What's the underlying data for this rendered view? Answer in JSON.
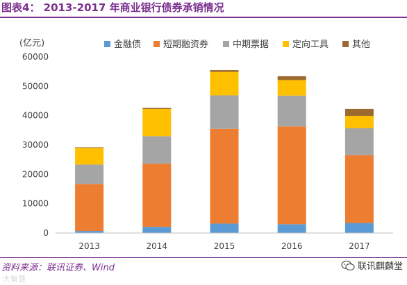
{
  "figure": {
    "title": "图表4： 2013-2017 年商业银行债券承销情况",
    "source": "资料来源：联讯证券、Wind",
    "brand": "联讯麒麟堂",
    "watermark": "大智慧"
  },
  "chart_data": {
    "type": "bar",
    "stacked": true,
    "unit_label": "(亿元)",
    "categories": [
      "2013",
      "2014",
      "2015",
      "2016",
      "2017"
    ],
    "ylim": [
      0,
      60000
    ],
    "yticks": [
      0,
      10000,
      20000,
      30000,
      40000,
      50000,
      60000
    ],
    "grid": false,
    "legend_position": "top",
    "series": [
      {
        "name": "金融债",
        "color": "#5b9bd5",
        "values": [
          700,
          2100,
          3200,
          3000,
          3400
        ]
      },
      {
        "name": "短期融资券",
        "color": "#ed7d31",
        "values": [
          16000,
          21500,
          32300,
          33300,
          23100
        ]
      },
      {
        "name": "中期票据",
        "color": "#a5a5a5",
        "values": [
          6600,
          9400,
          11400,
          10500,
          9200
        ]
      },
      {
        "name": "定向工具",
        "color": "#ffc000",
        "values": [
          5700,
          9300,
          8000,
          5300,
          4200
        ]
      },
      {
        "name": "其他",
        "color": "#9c6a30",
        "values": [
          200,
          300,
          600,
          1300,
          2400
        ]
      }
    ]
  }
}
